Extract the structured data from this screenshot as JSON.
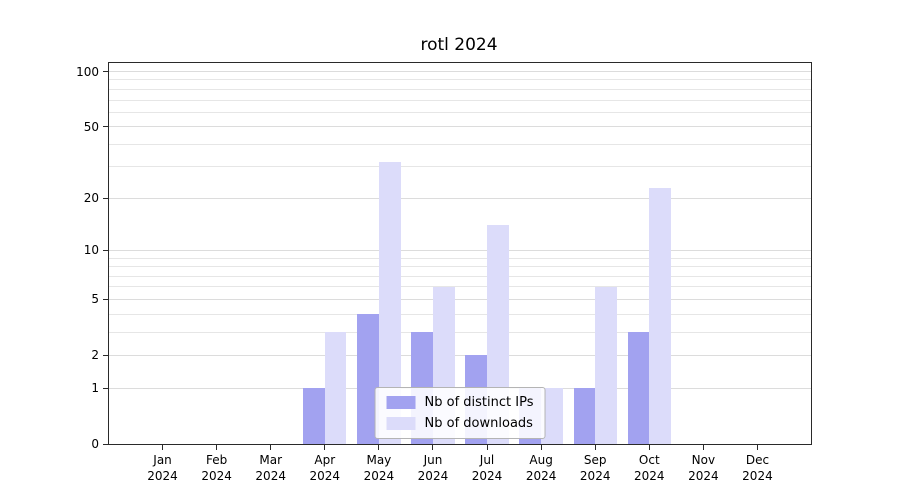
{
  "chart_data": {
    "type": "bar",
    "title": "rotl 2024",
    "y_scale": "log(1+x)",
    "ylim": [
      0,
      100
    ],
    "y_ticks": [
      0,
      1,
      2,
      5,
      10,
      20,
      50,
      100
    ],
    "y_minor_gridlines": [
      3,
      4,
      6,
      7,
      8,
      9,
      30,
      40,
      60,
      70,
      80,
      90
    ],
    "x_tick_months": [
      "Jan",
      "Feb",
      "Mar",
      "Apr",
      "May",
      "Jun",
      "Jul",
      "Aug",
      "Sep",
      "Oct",
      "Nov",
      "Dec"
    ],
    "x_tick_year": "2024",
    "grid": "on",
    "legend_position": "lower-center",
    "series": [
      {
        "name": "Nb of distinct IPs",
        "color": "#a2a2f0",
        "values": [
          0,
          0,
          0,
          1,
          4,
          3,
          2,
          1,
          1,
          3,
          0,
          0
        ]
      },
      {
        "name": "Nb of downloads",
        "color": "#dcdcfa",
        "values": [
          0,
          0,
          0,
          3,
          32,
          6,
          14,
          1,
          6,
          23,
          0,
          0
        ]
      }
    ]
  }
}
